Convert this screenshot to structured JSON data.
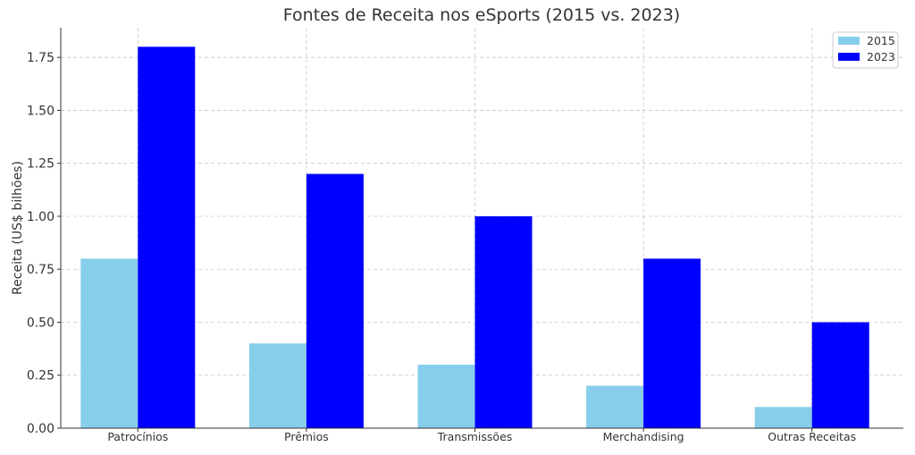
{
  "chart_data": {
    "type": "bar",
    "title": "Fontes de Receita nos eSports (2015 vs. 2023)",
    "xlabel": "",
    "ylabel": "Receita (US$ bilhões)",
    "categories": [
      "Patrocínios",
      "Prêmios",
      "Transmissões",
      "Merchandising",
      "Outras Receitas"
    ],
    "series": [
      {
        "name": "2015",
        "values": [
          0.8,
          0.4,
          0.3,
          0.2,
          0.1
        ],
        "color": "#87ceeb"
      },
      {
        "name": "2023",
        "values": [
          1.8,
          1.2,
          1.0,
          0.8,
          0.5
        ],
        "color": "#0000ff"
      }
    ],
    "ylim": [
      0,
      1.89
    ],
    "yticks": [
      "0.00",
      "0.25",
      "0.50",
      "0.75",
      "1.00",
      "1.25",
      "1.50",
      "1.75"
    ],
    "grid": true,
    "legend_position": "top-right"
  }
}
